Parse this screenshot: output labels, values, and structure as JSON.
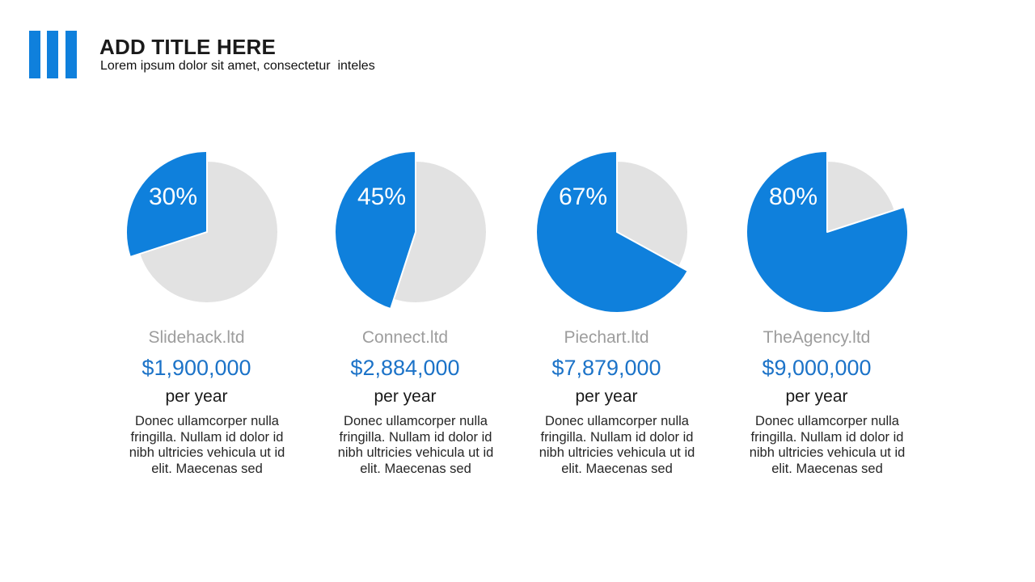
{
  "theme": {
    "accent_color": "#0F80DC",
    "remainder_color": "#E2E2E2",
    "amount_color": "#1C73C8",
    "company_color": "#9D9D9D",
    "text_color": "#262626",
    "percent_text_color": "#FFFFFF"
  },
  "header": {
    "title": "ADD TITLE HERE",
    "subtitle": "Lorem ipsum dolor sit amet, consectetur  inteles"
  },
  "chart_data": [
    {
      "type": "pie",
      "title": "Slidehack.ltd",
      "company": "Slidehack.ltd",
      "percent": 30,
      "percent_label": "30%",
      "values": [
        30,
        70
      ],
      "labels": [
        "highlighted",
        "remainder"
      ],
      "amount": "$1,900,000",
      "period": "per year",
      "description_lines": [
        "Donec ullamcorper nulla",
        "fringilla. Nullam id dolor id",
        "nibh ultricies vehicula ut id",
        "elit. Maecenas sed"
      ]
    },
    {
      "type": "pie",
      "title": "Connect.ltd",
      "company": "Connect.ltd",
      "percent": 45,
      "percent_label": "45%",
      "values": [
        45,
        55
      ],
      "labels": [
        "highlighted",
        "remainder"
      ],
      "amount": "$2,884,000",
      "period": "per year",
      "description_lines": [
        "Donec ullamcorper nulla",
        "fringilla. Nullam id dolor id",
        "nibh ultricies vehicula ut id",
        "elit. Maecenas sed"
      ]
    },
    {
      "type": "pie",
      "title": "Piechart.ltd",
      "company": "Piechart.ltd",
      "percent": 67,
      "percent_label": "67%",
      "values": [
        67,
        33
      ],
      "labels": [
        "highlighted",
        "remainder"
      ],
      "amount": "$7,879,000",
      "period": "per year",
      "description_lines": [
        "Donec ullamcorper nulla",
        "fringilla. Nullam id dolor id",
        "nibh ultricies vehicula ut id",
        "elit. Maecenas sed"
      ]
    },
    {
      "type": "pie",
      "title": "TheAgency.ltd",
      "company": "TheAgency.ltd",
      "percent": 80,
      "percent_label": "80%",
      "values": [
        80,
        20
      ],
      "labels": [
        "highlighted",
        "remainder"
      ],
      "amount": "$9,000,000",
      "period": "per year",
      "description_lines": [
        "Donec ullamcorper nulla",
        "fringilla. Nullam id dolor id",
        "nibh ultricies vehicula ut id",
        "elit. Maecenas sed"
      ]
    }
  ]
}
